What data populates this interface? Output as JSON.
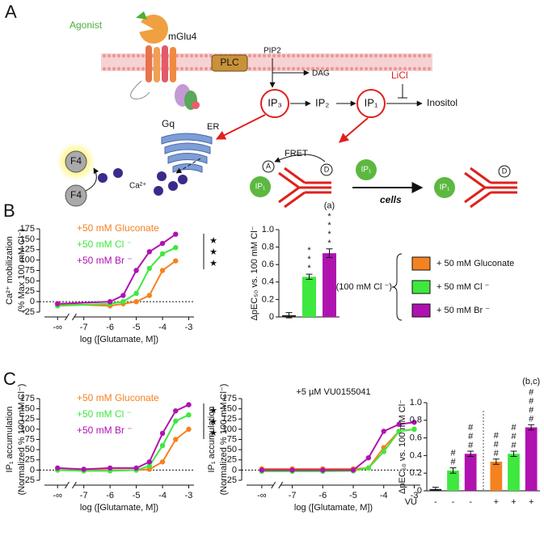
{
  "panels": [
    "A",
    "B",
    "C"
  ],
  "diagram": {
    "agonist": "Agonist",
    "receptor": "mGlu4",
    "plc": "PLC",
    "pip2": "PIP2",
    "dag": "DAG",
    "licl": "LiCl",
    "gq": "Gq",
    "ip3": "IP₃",
    "ip2": "IP₂",
    "ip1": "IP₁",
    "inositol": "Inositol",
    "er": "ER",
    "fret": "FRET",
    "f4": [
      "F4",
      "F4"
    ],
    "calcium": "Ca²⁺",
    "acceptor": "A",
    "donor": [
      "D",
      "D"
    ],
    "ip1_tags": [
      "IP₁",
      "IP₁",
      "IP₁"
    ],
    "cells": "cells"
  },
  "legend_box": {
    "reference": "(100 mM Cl ⁻)",
    "entries": [
      {
        "label": "+ 50 mM Gluconate",
        "color": "#f58220"
      },
      {
        "label": "+ 50 mM Cl ⁻",
        "color": "#3ee83e"
      },
      {
        "label": "+ 50 mM Br ⁻",
        "color": "#b012b0"
      }
    ]
  },
  "chart_data": [
    {
      "type": "line",
      "y_label": [
        "Ca²⁺ mobilization",
        "(% Max 100 mM Cl⁻)"
      ],
      "x_label": "log ([Glutamate, M])",
      "xlim": [
        -8.5,
        -2.8
      ],
      "xticks": [
        {
          "value": -8,
          "label": "-∞"
        },
        -7,
        -6,
        -5,
        -4,
        -3
      ],
      "ylim": [
        -25,
        175
      ],
      "yticks": [
        -25,
        0,
        25,
        50,
        75,
        100,
        125,
        150,
        175
      ],
      "zero_line": true,
      "annotation": "★★★",
      "x": [
        -8,
        -6,
        -5.5,
        -5,
        -4.5,
        -4,
        -3.5
      ],
      "series": [
        {
          "name": "+50 mM Gluconate",
          "color": "#f58220",
          "values": [
            -5,
            -10,
            -5,
            0,
            15,
            75,
            98
          ]
        },
        {
          "name": "+50 mM Cl ⁻",
          "color": "#3ee83e",
          "values": [
            -10,
            -5,
            0,
            20,
            80,
            115,
            130
          ]
        },
        {
          "name": "+50 mM Br ⁻",
          "color": "#b012b0",
          "values": [
            -5,
            0,
            15,
            75,
            120,
            140,
            162
          ]
        }
      ]
    },
    {
      "type": "bar",
      "y_label": "ΔpEC₅₀ vs. 100 mM Cl⁻",
      "ylim": [
        0,
        1.0
      ],
      "yticks": [
        0,
        0.2,
        0.4,
        0.6,
        0.8,
        {
          "value": 1.0,
          "label": "1.0"
        }
      ],
      "categories": [
        null,
        null,
        null
      ],
      "values": [
        0.02,
        0.46,
        0.73
      ],
      "errors": [
        0.03,
        0.03,
        0.05
      ],
      "colors": [
        "#222222",
        "#3ee83e",
        "#b012b0"
      ],
      "bar_labels": [
        null,
        "***",
        "****"
      ],
      "note": "(a)"
    },
    {
      "type": "line",
      "y_label": [
        "IP₁ accumulation",
        "(Normalized % 100 mM Cl⁻)"
      ],
      "x_label": "log ([Glutamate, M])",
      "xlim": [
        -8.5,
        -2.8
      ],
      "xticks": [
        {
          "value": -8,
          "label": "-∞"
        },
        -7,
        -6,
        -5,
        -4,
        -3
      ],
      "ylim": [
        -25,
        175
      ],
      "yticks": [
        -25,
        0,
        25,
        50,
        75,
        100,
        125,
        150,
        175
      ],
      "zero_line": true,
      "annotation": "★★★",
      "x": [
        -8,
        -7,
        -6,
        -5,
        -4.5,
        -4,
        -3.5,
        -3
      ],
      "series": [
        {
          "name": "+50 mM Gluconate",
          "color": "#f58220",
          "values": [
            0,
            0,
            0,
            0,
            2,
            20,
            75,
            100
          ]
        },
        {
          "name": "+50 mM Cl ⁻",
          "color": "#3ee83e",
          "values": [
            0,
            -2,
            -2,
            0,
            10,
            60,
            120,
            135
          ]
        },
        {
          "name": "+50 mM Br ⁻",
          "color": "#b012b0",
          "values": [
            5,
            2,
            5,
            5,
            20,
            90,
            145,
            160
          ]
        }
      ]
    },
    {
      "type": "line",
      "title": "+5 µM VU0155041",
      "y_label": [
        "IP₁ accumulation",
        "(Normalized % 100 mM Cl⁻)"
      ],
      "x_label": "log ([Glutamate, M])",
      "xlim": [
        -8.5,
        -2.8
      ],
      "xticks": [
        {
          "value": -8,
          "label": "-∞"
        },
        -7,
        -6,
        -5,
        -4,
        -3
      ],
      "ylim": [
        -25,
        175
      ],
      "yticks": [
        -25,
        0,
        25,
        50,
        75,
        100,
        125,
        150,
        175
      ],
      "zero_line": true,
      "x": [
        -8,
        -7,
        -6,
        -5,
        -4.5,
        -4,
        -3.5,
        -3
      ],
      "series": [
        {
          "color": "#f58220",
          "values": [
            3,
            3,
            3,
            3,
            5,
            55,
            95,
            100
          ]
        },
        {
          "color": "#3ee83e",
          "values": [
            -3,
            -3,
            -3,
            -2,
            5,
            45,
            95,
            100
          ]
        },
        {
          "color": "#b012b0",
          "values": [
            0,
            0,
            0,
            0,
            30,
            95,
            112,
            117
          ]
        }
      ]
    },
    {
      "type": "bar",
      "y_label": "ΔpEC₅₀ vs. 100 mM Cl⁻",
      "x_label": "VU",
      "ylim": [
        0,
        1.0
      ],
      "yticks": [
        0,
        0.2,
        0.4,
        0.6,
        0.8,
        {
          "value": 1.0,
          "label": "1.0"
        }
      ],
      "categories": [
        "-",
        "-",
        "-",
        "+",
        "+",
        "+"
      ],
      "values": [
        0.02,
        0.23,
        0.42,
        0.33,
        0.42,
        0.72
      ],
      "errors": [
        0.02,
        0.03,
        0.03,
        0.03,
        0.03,
        0.03
      ],
      "colors": [
        "#222222",
        "#3ee83e",
        "#b012b0",
        "#f58220",
        "#3ee83e",
        "#b012b0"
      ],
      "bar_labels": [
        null,
        "##",
        "###",
        "###",
        "###",
        "####"
      ],
      "separator": true,
      "note": "(b,c)"
    }
  ]
}
